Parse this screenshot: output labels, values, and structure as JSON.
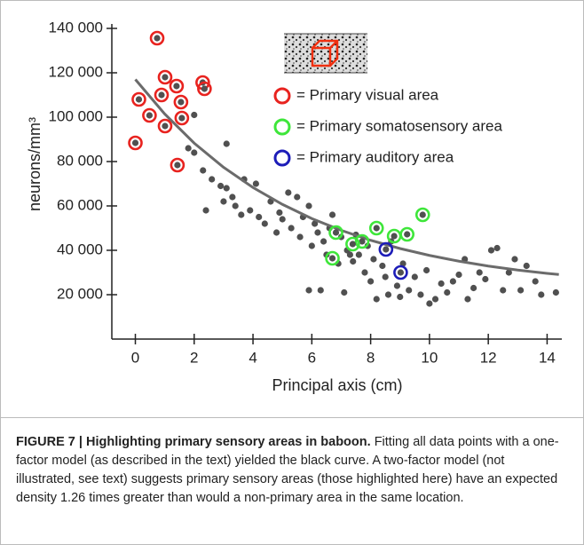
{
  "chart_data": {
    "type": "scatter",
    "xlabel": "Principal axis (cm)",
    "ylabel": "neurons/mm³",
    "xlim": [
      -0.8,
      14.5
    ],
    "ylim": [
      0,
      142000
    ],
    "xticks": [
      0,
      2,
      4,
      6,
      8,
      10,
      12,
      14
    ],
    "yticks": [
      {
        "value": 20000,
        "label": "20 000"
      },
      {
        "value": 40000,
        "label": "40 000"
      },
      {
        "value": 60000,
        "label": "60 000"
      },
      {
        "value": 80000,
        "label": "80 000"
      },
      {
        "value": 100000,
        "label": "100 000"
      },
      {
        "value": 120000,
        "label": "120 000"
      },
      {
        "value": 140000,
        "label": "140 000"
      }
    ],
    "series": [
      {
        "style": "dot",
        "color": "#505050",
        "x": [
          2.0,
          1.8,
          2.3,
          2.6,
          2.4,
          2.9,
          3.0,
          3.1,
          3.3,
          3.4,
          3.6,
          3.7,
          3.9,
          4.1,
          4.2,
          4.4,
          4.6,
          4.8,
          4.9,
          5.0,
          5.2,
          5.3,
          5.5,
          5.6,
          5.7,
          5.9,
          6.0,
          6.1,
          6.2,
          6.3,
          6.4,
          6.5,
          6.6,
          6.7,
          6.9,
          7.0,
          7.1,
          7.2,
          7.4,
          7.5,
          7.6,
          7.8,
          7.9,
          8.0,
          8.1,
          8.2,
          8.4,
          8.5,
          8.6,
          8.7,
          8.9,
          9.0,
          9.1,
          9.3,
          9.5,
          9.7,
          9.9,
          10.0,
          10.2,
          10.4,
          10.6,
          10.8,
          11.0,
          11.2,
          11.3,
          11.5,
          11.7,
          11.9,
          12.1,
          12.3,
          12.5,
          12.7,
          12.9,
          13.1,
          13.3,
          13.6,
          13.8,
          14.3,
          5.9,
          7.3,
          2.0,
          3.1
        ],
        "values": [
          101000,
          86000,
          76000,
          72000,
          58000,
          69000,
          62000,
          68000,
          64000,
          60000,
          56000,
          72000,
          58000,
          70000,
          55000,
          52000,
          62000,
          48000,
          57000,
          54000,
          66000,
          50000,
          64000,
          46000,
          55000,
          60000,
          42000,
          52000,
          48000,
          22000,
          44000,
          38000,
          50000,
          56000,
          34000,
          46000,
          21000,
          40000,
          35000,
          47000,
          38000,
          30000,
          42000,
          26000,
          36000,
          18000,
          33000,
          28000,
          20000,
          44000,
          24000,
          19000,
          34000,
          22000,
          28000,
          20000,
          31000,
          16000,
          18000,
          25000,
          21000,
          26000,
          29000,
          36000,
          18000,
          23000,
          30000,
          27000,
          40000,
          41000,
          22000,
          30000,
          36000,
          22000,
          33000,
          26000,
          20000,
          21000,
          22000,
          38000,
          84000,
          88000
        ]
      },
      {
        "style": "line",
        "color": "#6b6b6b",
        "x": [
          0,
          1,
          2,
          3,
          4,
          5,
          6,
          7,
          8,
          9,
          10,
          11,
          12,
          13,
          14,
          14.4
        ],
        "values": [
          117000,
          101400,
          88300,
          77400,
          68300,
          60700,
          54300,
          49000,
          44500,
          40800,
          37700,
          35100,
          32900,
          31100,
          29600,
          29100
        ]
      },
      {
        "style": "ring",
        "name": "= Primary visual area",
        "color": "#e8231f",
        "x": [
          0,
          0.12,
          0.48,
          0.74,
          0.89,
          1.01,
          1.01,
          1.4,
          1.55,
          1.58,
          1.43,
          2.29,
          2.35
        ],
        "values": [
          88400,
          108000,
          100800,
          135600,
          110000,
          118000,
          96000,
          114000,
          106800,
          99600,
          78400,
          115600,
          112800
        ]
      },
      {
        "style": "ring",
        "name": "= Primary somatosensory area",
        "color": "#3ee63a",
        "x": [
          6.82,
          6.7,
          7.71,
          7.39,
          8.2,
          8.8,
          9.24,
          9.77
        ],
        "values": [
          48000,
          36400,
          44000,
          42800,
          50000,
          46400,
          47200,
          56000
        ]
      },
      {
        "style": "ring",
        "name": "= Primary auditory area",
        "color": "#1d1db8",
        "x": [
          8.52,
          9.02
        ],
        "values": [
          40400,
          30000
        ]
      }
    ]
  },
  "caption": {
    "label": "FIGURE 7 | Highlighting primary sensory areas in baboon.",
    "text": "Fitting all data points with a one-factor model (as described in the text) yielded the black curve. A two-factor model (not illustrated, see text) suggests primary sensory areas (those highlighted here) have an expected density 1.26 times greater than would a non-primary area in the same location."
  }
}
